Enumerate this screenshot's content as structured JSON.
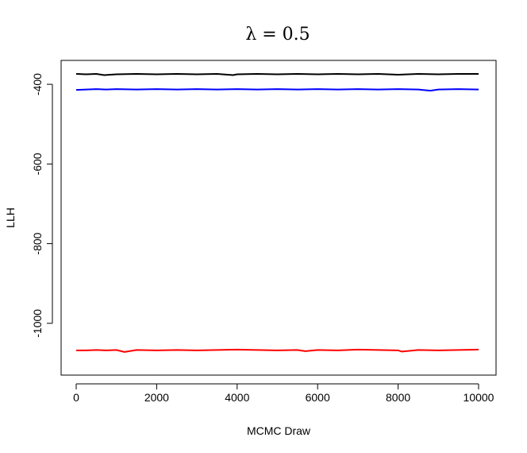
{
  "chart_data": {
    "type": "line",
    "title": "λ = 0.5",
    "xlabel": "MCMC Draw",
    "ylabel": "LLH",
    "xlim": [
      0,
      10000
    ],
    "ylim": [
      -1130,
      -340
    ],
    "x_ticks": [
      0,
      2000,
      4000,
      6000,
      8000,
      10000
    ],
    "x_tick_labels": [
      "0",
      "2000",
      "4000",
      "6000",
      "8000",
      "10000"
    ],
    "y_ticks": [
      -400,
      -600,
      -800,
      -1000
    ],
    "y_tick_labels": [
      "-400",
      "-600",
      "-800",
      "-1000"
    ],
    "grid": false,
    "legend": "none",
    "series": [
      {
        "color": "#000000",
        "x": [
          0,
          250,
          500,
          700,
          1000,
          1500,
          2000,
          2500,
          3000,
          3500,
          3900,
          4000,
          4500,
          5000,
          5500,
          6000,
          6500,
          7000,
          7500,
          8000,
          8500,
          9000,
          9500,
          10000
        ],
        "values": [
          -374,
          -375,
          -374,
          -377,
          -375,
          -374,
          -375,
          -374,
          -375,
          -374,
          -377,
          -375,
          -374,
          -375,
          -374,
          -375,
          -374,
          -375,
          -374,
          -376,
          -374,
          -375,
          -374,
          -374
        ]
      },
      {
        "color": "#0000ff",
        "x": [
          0,
          250,
          500,
          750,
          1000,
          1500,
          2000,
          2500,
          3000,
          3500,
          4000,
          4500,
          5000,
          5500,
          6000,
          6500,
          7000,
          7500,
          8000,
          8500,
          8800,
          9000,
          9500,
          10000
        ],
        "values": [
          -414,
          -413,
          -412,
          -413,
          -412,
          -413,
          -412,
          -413,
          -412,
          -413,
          -412,
          -413,
          -412,
          -413,
          -412,
          -413,
          -412,
          -413,
          -412,
          -413,
          -416,
          -413,
          -412,
          -413
        ]
      },
      {
        "color": "#ff0000",
        "x": [
          0,
          250,
          500,
          750,
          1000,
          1200,
          1500,
          2000,
          2500,
          3000,
          3500,
          4000,
          4500,
          5000,
          5500,
          5700,
          6000,
          6500,
          7000,
          7500,
          8000,
          8100,
          8500,
          9000,
          9500,
          10000
        ],
        "values": [
          -1068,
          -1068,
          -1067,
          -1068,
          -1067,
          -1072,
          -1067,
          -1068,
          -1067,
          -1068,
          -1067,
          -1066,
          -1067,
          -1068,
          -1067,
          -1070,
          -1067,
          -1068,
          -1066,
          -1067,
          -1068,
          -1071,
          -1067,
          -1068,
          -1067,
          -1066
        ]
      }
    ]
  }
}
